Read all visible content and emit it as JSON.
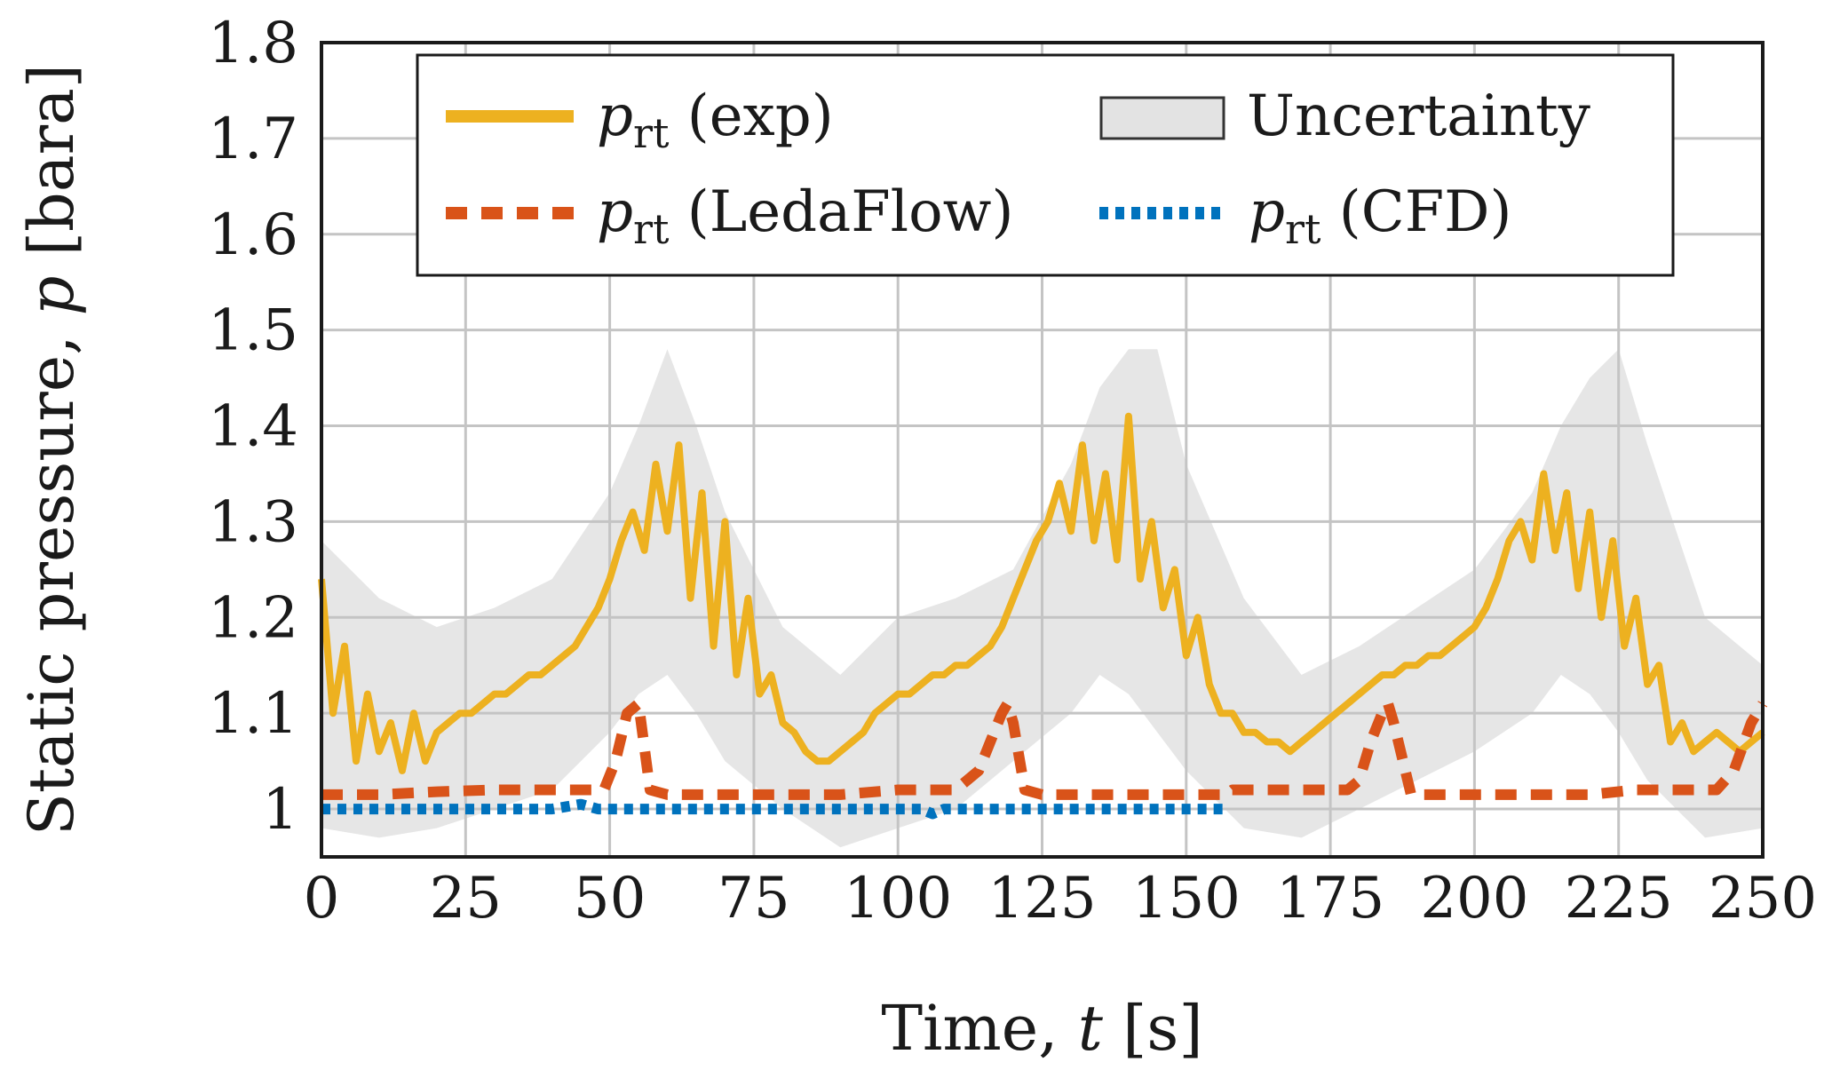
{
  "chart_data": {
    "type": "line",
    "title": "",
    "xlabel": {
      "text": "Time, ",
      "symbol": "t",
      "unit": " [s]"
    },
    "ylabel": {
      "text": "Static pressure, ",
      "symbol": "p",
      "unit": " [bara]"
    },
    "xlim": [
      0,
      250
    ],
    "ylim": [
      0.95,
      1.8
    ],
    "xticks": [
      0,
      25,
      50,
      75,
      100,
      125,
      150,
      175,
      200,
      225,
      250
    ],
    "yticks": [
      1,
      1.1,
      1.2,
      1.3,
      1.4,
      1.5,
      1.6,
      1.7,
      1.8
    ],
    "xtick_labels": [
      "0",
      "25",
      "50",
      "75",
      "100",
      "125",
      "150",
      "175",
      "200",
      "225",
      "250"
    ],
    "ytick_labels": [
      "1",
      "1.1",
      "1.2",
      "1.3",
      "1.4",
      "1.5",
      "1.6",
      "1.7",
      "1.8"
    ],
    "grid": true,
    "legend": {
      "position": "top",
      "entries": [
        {
          "symbol": "p",
          "subscript": "rt",
          "label": " (exp)",
          "style": "solid",
          "color": "#EDB120"
        },
        {
          "symbol": "",
          "subscript": "",
          "label": "Uncertainty",
          "style": "band",
          "color": "#E3E3E3"
        },
        {
          "symbol": "p",
          "subscript": "rt",
          "label": " (LedaFlow)",
          "style": "dashed",
          "color": "#D95319"
        },
        {
          "symbol": "p",
          "subscript": "rt",
          "label": " (CFD)",
          "style": "dotted",
          "color": "#0072BD"
        }
      ]
    },
    "series": [
      {
        "name": "p_rt (exp)",
        "color": "#EDB120",
        "style": "solid",
        "x": [
          0,
          2,
          4,
          6,
          8,
          10,
          12,
          14,
          16,
          18,
          20,
          22,
          24,
          26,
          28,
          30,
          32,
          34,
          36,
          38,
          40,
          42,
          44,
          46,
          48,
          50,
          52,
          54,
          56,
          58,
          60,
          62,
          64,
          66,
          68,
          70,
          72,
          74,
          76,
          78,
          80,
          82,
          84,
          86,
          88,
          90,
          92,
          94,
          96,
          98,
          100,
          102,
          104,
          106,
          108,
          110,
          112,
          114,
          116,
          118,
          120,
          122,
          124,
          126,
          128,
          130,
          132,
          134,
          136,
          138,
          140,
          142,
          144,
          146,
          148,
          150,
          152,
          154,
          156,
          158,
          160,
          162,
          164,
          166,
          168,
          170,
          172,
          174,
          176,
          178,
          180,
          182,
          184,
          186,
          188,
          190,
          192,
          194,
          196,
          198,
          200,
          202,
          204,
          206,
          208,
          210,
          212,
          214,
          216,
          218,
          220,
          222,
          224,
          226,
          228,
          230,
          232,
          234,
          236,
          238,
          240,
          242,
          244,
          246,
          248,
          250
        ],
        "y": [
          1.24,
          1.1,
          1.17,
          1.05,
          1.12,
          1.06,
          1.09,
          1.04,
          1.1,
          1.05,
          1.08,
          1.09,
          1.1,
          1.1,
          1.11,
          1.12,
          1.12,
          1.13,
          1.14,
          1.14,
          1.15,
          1.16,
          1.17,
          1.19,
          1.21,
          1.24,
          1.28,
          1.31,
          1.27,
          1.36,
          1.29,
          1.38,
          1.22,
          1.33,
          1.17,
          1.3,
          1.14,
          1.22,
          1.12,
          1.14,
          1.09,
          1.08,
          1.06,
          1.05,
          1.05,
          1.06,
          1.07,
          1.08,
          1.1,
          1.11,
          1.12,
          1.12,
          1.13,
          1.14,
          1.14,
          1.15,
          1.15,
          1.16,
          1.17,
          1.19,
          1.22,
          1.25,
          1.28,
          1.3,
          1.34,
          1.29,
          1.38,
          1.28,
          1.35,
          1.26,
          1.41,
          1.24,
          1.3,
          1.21,
          1.25,
          1.16,
          1.2,
          1.13,
          1.1,
          1.1,
          1.08,
          1.08,
          1.07,
          1.07,
          1.06,
          1.07,
          1.08,
          1.09,
          1.1,
          1.11,
          1.12,
          1.13,
          1.14,
          1.14,
          1.15,
          1.15,
          1.16,
          1.16,
          1.17,
          1.18,
          1.19,
          1.21,
          1.24,
          1.28,
          1.3,
          1.26,
          1.35,
          1.27,
          1.33,
          1.23,
          1.31,
          1.2,
          1.28,
          1.17,
          1.22,
          1.13,
          1.15,
          1.07,
          1.09,
          1.06,
          1.07,
          1.08,
          1.07,
          1.06,
          1.07,
          1.08
        ]
      },
      {
        "name": "p_rt (LedaFlow)",
        "color": "#D95319",
        "style": "dashed",
        "x": [
          0,
          10,
          20,
          30,
          40,
          46,
          49,
          51,
          53,
          55,
          57,
          60,
          70,
          80,
          90,
          100,
          110,
          114,
          116,
          118,
          119,
          120,
          122,
          125,
          140,
          157,
          158,
          170,
          178,
          180,
          182,
          184,
          185,
          186,
          189,
          200,
          220,
          228,
          242,
          245,
          248,
          250
        ],
        "y": [
          1.015,
          1.015,
          1.018,
          1.02,
          1.02,
          1.02,
          1.02,
          1.05,
          1.1,
          1.11,
          1.02,
          1.015,
          1.015,
          1.015,
          1.015,
          1.02,
          1.02,
          1.04,
          1.07,
          1.1,
          1.11,
          1.09,
          1.02,
          1.015,
          1.015,
          1.015,
          1.02,
          1.02,
          1.02,
          1.03,
          1.07,
          1.1,
          1.11,
          1.09,
          1.015,
          1.015,
          1.015,
          1.02,
          1.02,
          1.04,
          1.09,
          1.11
        ]
      },
      {
        "name": "p_rt (CFD)",
        "color": "#0072BD",
        "style": "dotted",
        "x": [
          0,
          10,
          20,
          30,
          40,
          45,
          48,
          50,
          60,
          70,
          80,
          90,
          100,
          104,
          106,
          108,
          110,
          120,
          130,
          140,
          150,
          157
        ],
        "y": [
          1.0,
          1.0,
          1.0,
          1.0,
          1.0,
          1.005,
          1.0,
          1.0,
          1.0,
          1.0,
          1.0,
          1.0,
          1.0,
          1.0,
          0.995,
          1.0,
          1.0,
          1.0,
          1.0,
          1.0,
          1.0,
          1.0
        ]
      }
    ],
    "uncertainty_band": {
      "name": "Uncertainty",
      "color": "#E3E3E3",
      "x": [
        0,
        10,
        20,
        30,
        40,
        50,
        55,
        60,
        65,
        70,
        80,
        90,
        100,
        110,
        120,
        130,
        135,
        140,
        145,
        150,
        160,
        170,
        180,
        190,
        200,
        210,
        215,
        220,
        225,
        230,
        240,
        250
      ],
      "upper": [
        1.28,
        1.22,
        1.19,
        1.21,
        1.24,
        1.33,
        1.4,
        1.48,
        1.4,
        1.31,
        1.19,
        1.14,
        1.2,
        1.22,
        1.25,
        1.36,
        1.44,
        1.48,
        1.48,
        1.36,
        1.22,
        1.14,
        1.17,
        1.21,
        1.25,
        1.33,
        1.4,
        1.45,
        1.48,
        1.38,
        1.2,
        1.15
      ],
      "lower": [
        0.98,
        0.97,
        0.98,
        1.0,
        1.02,
        1.08,
        1.12,
        1.14,
        1.1,
        1.05,
        1.0,
        0.96,
        0.98,
        1.0,
        1.05,
        1.1,
        1.14,
        1.12,
        1.08,
        1.04,
        0.98,
        0.97,
        1.0,
        1.03,
        1.06,
        1.1,
        1.14,
        1.12,
        1.08,
        1.03,
        0.97,
        0.98
      ]
    }
  }
}
